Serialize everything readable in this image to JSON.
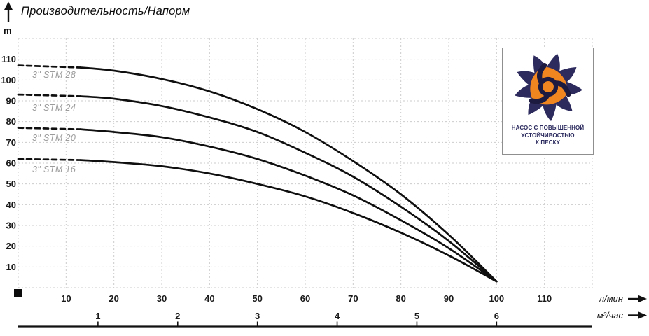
{
  "title": "Производительность/Напорм",
  "y_axis": {
    "unit": "m",
    "ticks": [
      110,
      100,
      90,
      80,
      70,
      60,
      50,
      40,
      30,
      20,
      10
    ]
  },
  "x_axis_lmin": {
    "unit": "л/мин",
    "ticks": [
      10,
      20,
      30,
      40,
      50,
      60,
      70,
      80,
      90,
      100,
      110
    ]
  },
  "x_axis_m3h": {
    "unit": "м³/час",
    "ticks": [
      1,
      2,
      3,
      4,
      5,
      6
    ]
  },
  "chart_data": {
    "type": "line",
    "title": "Производительность/Напорм",
    "ylabel": "m",
    "xlabel_primary": "л/мин",
    "xlabel_secondary": "м³/час",
    "xlim": [
      0,
      120
    ],
    "ylim": [
      0,
      120
    ],
    "grid": true,
    "grid_step": 10,
    "x_secondary_factor": 16.6667,
    "dashed_until_index": 1,
    "x": [
      0,
      13,
      20,
      30,
      40,
      50,
      60,
      70,
      80,
      90,
      100
    ],
    "series": [
      {
        "name": "3\" STM 28",
        "values": [
          107,
          106,
          104.5,
          100.5,
          94.5,
          86,
          75,
          61,
          45,
          25.5,
          3
        ]
      },
      {
        "name": "3\" STM 24",
        "values": [
          93,
          92.2,
          91,
          87.5,
          82,
          75,
          65,
          53.5,
          39,
          22.5,
          3
        ]
      },
      {
        "name": "3\" STM 20",
        "values": [
          77,
          76.3,
          75,
          72.5,
          68,
          62,
          54,
          44.5,
          32.5,
          19,
          3
        ]
      },
      {
        "name": "3\" STM 16",
        "values": [
          62,
          61.5,
          60.5,
          58.5,
          55,
          50,
          44,
          36,
          26.5,
          15.5,
          3
        ]
      }
    ],
    "colors": {
      "curve": "#0f0f0f",
      "grid": "#cbcbcb",
      "tick_label": "#1a1a1a",
      "curve_label": "#9b9b9b",
      "axis_line": "#111111"
    }
  },
  "logo": {
    "line1": "НАСОС С ПОВЫШЕННОЙ",
    "line2": "УСТОЙЧИВОСТЬЮ",
    "line3": "К ПЕСКУ",
    "navy": "#2d2a5e",
    "navy_dark": "#1e1b40",
    "orange": "#f0861f"
  }
}
